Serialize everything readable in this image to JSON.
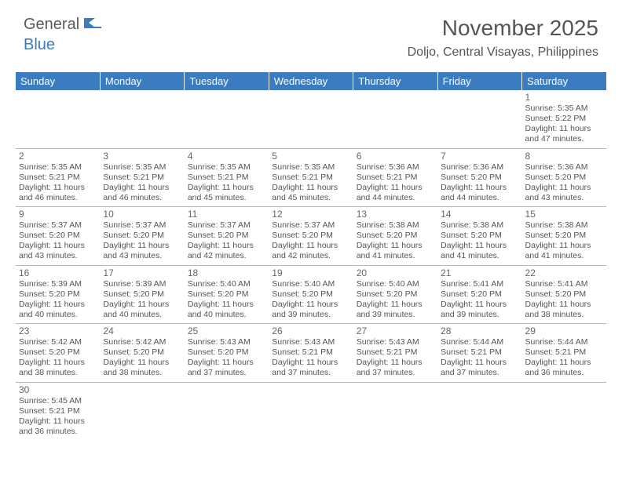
{
  "logo": {
    "word1": "General",
    "word2": "Blue"
  },
  "title": "November 2025",
  "location": "Doljo, Central Visayas, Philippines",
  "colors": {
    "header_bg": "#3b7bbf",
    "header_text": "#ffffff",
    "body_text": "#555555",
    "grid_line": "#b8b8b8"
  },
  "weekdays": [
    "Sunday",
    "Monday",
    "Tuesday",
    "Wednesday",
    "Thursday",
    "Friday",
    "Saturday"
  ],
  "weeks": [
    [
      null,
      null,
      null,
      null,
      null,
      null,
      {
        "n": "1",
        "sr": "5:35 AM",
        "ss": "5:22 PM",
        "dl": "11 hours and 47 minutes."
      }
    ],
    [
      {
        "n": "2",
        "sr": "5:35 AM",
        "ss": "5:21 PM",
        "dl": "11 hours and 46 minutes."
      },
      {
        "n": "3",
        "sr": "5:35 AM",
        "ss": "5:21 PM",
        "dl": "11 hours and 46 minutes."
      },
      {
        "n": "4",
        "sr": "5:35 AM",
        "ss": "5:21 PM",
        "dl": "11 hours and 45 minutes."
      },
      {
        "n": "5",
        "sr": "5:35 AM",
        "ss": "5:21 PM",
        "dl": "11 hours and 45 minutes."
      },
      {
        "n": "6",
        "sr": "5:36 AM",
        "ss": "5:21 PM",
        "dl": "11 hours and 44 minutes."
      },
      {
        "n": "7",
        "sr": "5:36 AM",
        "ss": "5:20 PM",
        "dl": "11 hours and 44 minutes."
      },
      {
        "n": "8",
        "sr": "5:36 AM",
        "ss": "5:20 PM",
        "dl": "11 hours and 43 minutes."
      }
    ],
    [
      {
        "n": "9",
        "sr": "5:37 AM",
        "ss": "5:20 PM",
        "dl": "11 hours and 43 minutes."
      },
      {
        "n": "10",
        "sr": "5:37 AM",
        "ss": "5:20 PM",
        "dl": "11 hours and 43 minutes."
      },
      {
        "n": "11",
        "sr": "5:37 AM",
        "ss": "5:20 PM",
        "dl": "11 hours and 42 minutes."
      },
      {
        "n": "12",
        "sr": "5:37 AM",
        "ss": "5:20 PM",
        "dl": "11 hours and 42 minutes."
      },
      {
        "n": "13",
        "sr": "5:38 AM",
        "ss": "5:20 PM",
        "dl": "11 hours and 41 minutes."
      },
      {
        "n": "14",
        "sr": "5:38 AM",
        "ss": "5:20 PM",
        "dl": "11 hours and 41 minutes."
      },
      {
        "n": "15",
        "sr": "5:38 AM",
        "ss": "5:20 PM",
        "dl": "11 hours and 41 minutes."
      }
    ],
    [
      {
        "n": "16",
        "sr": "5:39 AM",
        "ss": "5:20 PM",
        "dl": "11 hours and 40 minutes."
      },
      {
        "n": "17",
        "sr": "5:39 AM",
        "ss": "5:20 PM",
        "dl": "11 hours and 40 minutes."
      },
      {
        "n": "18",
        "sr": "5:40 AM",
        "ss": "5:20 PM",
        "dl": "11 hours and 40 minutes."
      },
      {
        "n": "19",
        "sr": "5:40 AM",
        "ss": "5:20 PM",
        "dl": "11 hours and 39 minutes."
      },
      {
        "n": "20",
        "sr": "5:40 AM",
        "ss": "5:20 PM",
        "dl": "11 hours and 39 minutes."
      },
      {
        "n": "21",
        "sr": "5:41 AM",
        "ss": "5:20 PM",
        "dl": "11 hours and 39 minutes."
      },
      {
        "n": "22",
        "sr": "5:41 AM",
        "ss": "5:20 PM",
        "dl": "11 hours and 38 minutes."
      }
    ],
    [
      {
        "n": "23",
        "sr": "5:42 AM",
        "ss": "5:20 PM",
        "dl": "11 hours and 38 minutes."
      },
      {
        "n": "24",
        "sr": "5:42 AM",
        "ss": "5:20 PM",
        "dl": "11 hours and 38 minutes."
      },
      {
        "n": "25",
        "sr": "5:43 AM",
        "ss": "5:20 PM",
        "dl": "11 hours and 37 minutes."
      },
      {
        "n": "26",
        "sr": "5:43 AM",
        "ss": "5:21 PM",
        "dl": "11 hours and 37 minutes."
      },
      {
        "n": "27",
        "sr": "5:43 AM",
        "ss": "5:21 PM",
        "dl": "11 hours and 37 minutes."
      },
      {
        "n": "28",
        "sr": "5:44 AM",
        "ss": "5:21 PM",
        "dl": "11 hours and 37 minutes."
      },
      {
        "n": "29",
        "sr": "5:44 AM",
        "ss": "5:21 PM",
        "dl": "11 hours and 36 minutes."
      }
    ],
    [
      {
        "n": "30",
        "sr": "5:45 AM",
        "ss": "5:21 PM",
        "dl": "11 hours and 36 minutes."
      },
      null,
      null,
      null,
      null,
      null,
      null
    ]
  ],
  "labels": {
    "sunrise": "Sunrise:",
    "sunset": "Sunset:",
    "daylight": "Daylight:"
  }
}
